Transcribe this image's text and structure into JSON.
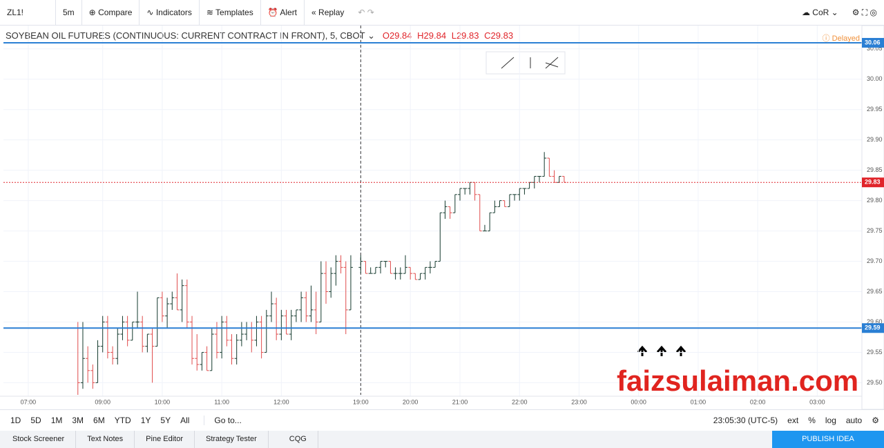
{
  "toolbar": {
    "symbol": "ZL1!",
    "interval": "5m",
    "buttons": [
      "Compare",
      "Indicators",
      "Templates",
      "Alert",
      "Replay"
    ],
    "layout": "CoR"
  },
  "legend": {
    "symbol": "SOYBEAN OIL FUTURES (CONTINUOUS: CURRENT CONTRACT IN FRONT), 5, CBOT",
    "ohlc_labels": [
      "O",
      "H",
      "L",
      "C"
    ],
    "ohlc": [
      29.84,
      29.84,
      29.83,
      29.83
    ],
    "status": "Delayed"
  },
  "chart_data": {
    "type": "ohlc",
    "up_color": "#13382c",
    "down_color": "#e04b4b",
    "grid": true,
    "xlim": [
      -15,
      158
    ],
    "ylim": [
      29.48,
      30.085
    ],
    "xticks": [
      {
        "value": -10,
        "label": "07:00"
      },
      {
        "value": 5,
        "label": "09:00"
      },
      {
        "value": 17,
        "label": "10:00"
      },
      {
        "value": 29,
        "label": "11:00"
      },
      {
        "value": 41,
        "label": "12:00"
      },
      {
        "value": 57,
        "label": "19:00"
      },
      {
        "value": 67,
        "label": "20:00"
      },
      {
        "value": 77,
        "label": "21:00"
      },
      {
        "value": 89,
        "label": "22:00"
      },
      {
        "value": 101,
        "label": "23:00"
      },
      {
        "value": 113,
        "label": "00:00"
      },
      {
        "value": 125,
        "label": "01:00"
      },
      {
        "value": 137,
        "label": "02:00"
      },
      {
        "value": 149,
        "label": "03:00"
      }
    ],
    "yticks": [
      30.05,
      {
        "value": 30,
        "label": "30.00"
      },
      29.95,
      {
        "value": 29.9,
        "label": "29.90"
      },
      29.85,
      {
        "value": 29.8,
        "label": "29.80"
      },
      29.75,
      {
        "value": 29.7,
        "label": "29.70"
      },
      29.65,
      {
        "value": 29.6,
        "label": "29.60"
      },
      29.55,
      {
        "value": 29.5,
        "label": "29.50"
      }
    ],
    "hlines": [
      {
        "value": 30.06,
        "color": "#2a7fd4"
      },
      {
        "value": 29.59,
        "color": "#2a7fd4"
      },
      {
        "value": 29.83,
        "color": "#e0242a"
      }
    ],
    "crosshair_x": 57,
    "x": [
      0,
      1,
      2,
      3,
      4,
      5,
      6,
      7,
      8,
      9,
      10,
      11,
      12,
      13,
      14,
      15,
      16,
      17,
      18,
      19,
      20,
      21,
      22,
      23,
      24,
      25,
      26,
      27,
      28,
      29,
      30,
      31,
      32,
      33,
      34,
      35,
      36,
      37,
      38,
      39,
      40,
      41,
      42,
      43,
      44,
      45,
      46,
      47,
      48,
      49,
      50,
      51,
      52,
      53,
      54,
      55,
      57,
      58,
      59,
      60,
      61,
      62,
      63,
      64,
      65,
      66,
      67,
      68,
      69,
      70,
      71,
      72,
      73,
      74,
      75,
      76,
      77,
      78,
      79,
      80,
      81,
      82,
      83,
      84,
      85,
      86,
      87,
      88,
      89,
      90,
      91,
      92,
      93,
      94,
      95,
      96,
      97,
      98
    ],
    "ohlc": [
      [
        29.59,
        29.6,
        29.48,
        29.5
      ],
      [
        29.5,
        29.6,
        29.49,
        29.54
      ],
      [
        29.54,
        29.56,
        29.5,
        29.52
      ],
      [
        29.52,
        29.53,
        29.49,
        29.5
      ],
      [
        29.5,
        29.57,
        29.5,
        29.56
      ],
      [
        29.56,
        29.61,
        29.55,
        29.6
      ],
      [
        29.6,
        29.61,
        29.54,
        29.55
      ],
      [
        29.55,
        29.56,
        29.53,
        29.54
      ],
      [
        29.54,
        29.59,
        29.53,
        29.58
      ],
      [
        29.58,
        29.61,
        29.57,
        29.6
      ],
      [
        29.6,
        29.61,
        29.56,
        29.57
      ],
      [
        29.57,
        29.6,
        29.57,
        29.6
      ],
      [
        29.6,
        29.65,
        29.59,
        29.6
      ],
      [
        29.6,
        29.61,
        29.55,
        29.56
      ],
      [
        29.56,
        29.58,
        29.55,
        29.58
      ],
      [
        29.58,
        29.59,
        29.5,
        29.56
      ],
      [
        29.56,
        29.64,
        29.56,
        29.64
      ],
      [
        29.64,
        29.65,
        29.6,
        29.61
      ],
      [
        29.61,
        29.64,
        29.59,
        29.63
      ],
      [
        29.63,
        29.65,
        29.62,
        29.64
      ],
      [
        29.64,
        29.68,
        29.62,
        29.62
      ],
      [
        29.62,
        29.67,
        29.6,
        29.66
      ],
      [
        29.66,
        29.67,
        29.59,
        29.6
      ],
      [
        29.6,
        29.61,
        29.53,
        29.54
      ],
      [
        29.54,
        29.58,
        29.52,
        29.53
      ],
      [
        29.53,
        29.55,
        29.52,
        29.55
      ],
      [
        29.55,
        29.56,
        29.52,
        29.52
      ],
      [
        29.52,
        29.59,
        29.52,
        29.58
      ],
      [
        29.58,
        29.6,
        29.54,
        29.55
      ],
      [
        29.55,
        29.61,
        29.54,
        29.6
      ],
      [
        29.6,
        29.61,
        29.56,
        29.57
      ],
      [
        29.57,
        29.58,
        29.53,
        29.54
      ],
      [
        29.54,
        29.58,
        29.53,
        29.57
      ],
      [
        29.57,
        29.6,
        29.56,
        29.58
      ],
      [
        29.58,
        29.6,
        29.57,
        29.59
      ],
      [
        29.59,
        29.6,
        29.55,
        29.57
      ],
      [
        29.57,
        29.61,
        29.56,
        29.6
      ],
      [
        29.6,
        29.61,
        29.54,
        29.55
      ],
      [
        29.55,
        29.62,
        29.55,
        29.61
      ],
      [
        29.61,
        29.65,
        29.6,
        29.63
      ],
      [
        29.63,
        29.64,
        29.57,
        29.58
      ],
      [
        29.58,
        29.62,
        29.57,
        29.61
      ],
      [
        29.61,
        29.62,
        29.58,
        29.58
      ],
      [
        29.58,
        29.62,
        29.57,
        29.61
      ],
      [
        29.61,
        29.62,
        29.6,
        29.62
      ],
      [
        29.62,
        29.65,
        29.6,
        29.64
      ],
      [
        29.64,
        29.65,
        29.6,
        29.61
      ],
      [
        29.61,
        29.66,
        29.6,
        29.62
      ],
      [
        29.62,
        29.65,
        29.58,
        29.6
      ],
      [
        29.6,
        29.7,
        29.6,
        29.68
      ],
      [
        29.68,
        29.7,
        29.63,
        29.65
      ],
      [
        29.65,
        29.69,
        29.64,
        29.68
      ],
      [
        29.68,
        29.71,
        29.66,
        29.7
      ],
      [
        29.7,
        29.71,
        29.68,
        29.69
      ],
      [
        29.69,
        29.7,
        29.58,
        29.62
      ],
      [
        29.62,
        29.71,
        29.62,
        29.69
      ],
      [
        29.69,
        29.71,
        29.68,
        29.7
      ],
      [
        29.7,
        29.7,
        29.68,
        29.68
      ],
      [
        29.68,
        29.69,
        29.68,
        29.68
      ],
      [
        29.68,
        29.69,
        29.68,
        29.69
      ],
      [
        29.69,
        29.7,
        29.68,
        29.7
      ],
      [
        29.7,
        29.7,
        29.69,
        29.7
      ],
      [
        29.7,
        29.7,
        29.68,
        29.68
      ],
      [
        29.68,
        29.69,
        29.67,
        29.68
      ],
      [
        29.68,
        29.69,
        29.67,
        29.68
      ],
      [
        29.68,
        29.71,
        29.68,
        29.69
      ],
      [
        29.69,
        29.69,
        29.67,
        29.68
      ],
      [
        29.68,
        29.68,
        29.67,
        29.67
      ],
      [
        29.67,
        29.68,
        29.67,
        29.68
      ],
      [
        29.68,
        29.69,
        29.67,
        29.69
      ],
      [
        29.69,
        29.7,
        29.68,
        29.69
      ],
      [
        29.69,
        29.7,
        29.69,
        29.7
      ],
      [
        29.7,
        29.78,
        29.7,
        29.78
      ],
      [
        29.78,
        29.8,
        29.77,
        29.79
      ],
      [
        29.79,
        29.79,
        29.77,
        29.78
      ],
      [
        29.78,
        29.81,
        29.78,
        29.81
      ],
      [
        29.81,
        29.82,
        29.8,
        29.82
      ],
      [
        29.82,
        29.82,
        29.81,
        29.82
      ],
      [
        29.82,
        29.83,
        29.81,
        29.83
      ],
      [
        29.83,
        29.83,
        29.8,
        29.81
      ],
      [
        29.81,
        29.81,
        29.75,
        29.75
      ],
      [
        29.75,
        29.76,
        29.75,
        29.75
      ],
      [
        29.75,
        29.78,
        29.75,
        29.78
      ],
      [
        29.78,
        29.8,
        29.78,
        29.79
      ],
      [
        29.79,
        29.8,
        29.79,
        29.8
      ],
      [
        29.8,
        29.8,
        29.79,
        29.79
      ],
      [
        29.79,
        29.81,
        29.79,
        29.81
      ],
      [
        29.81,
        29.81,
        29.8,
        29.81
      ],
      [
        29.81,
        29.82,
        29.8,
        29.82
      ],
      [
        29.82,
        29.82,
        29.81,
        29.82
      ],
      [
        29.82,
        29.83,
        29.82,
        29.83
      ],
      [
        29.83,
        29.84,
        29.82,
        29.84
      ],
      [
        29.84,
        29.84,
        29.83,
        29.84
      ],
      [
        29.84,
        29.88,
        29.84,
        29.87
      ],
      [
        29.87,
        29.87,
        29.84,
        29.84
      ],
      [
        29.84,
        29.85,
        29.83,
        29.83
      ],
      [
        29.83,
        29.84,
        29.83,
        29.84
      ],
      [
        29.84,
        29.84,
        29.83,
        29.83
      ]
    ],
    "watermark": "faizsulaiman.com"
  },
  "range_bar": {
    "ranges": [
      "1D",
      "5D",
      "1M",
      "3M",
      "6M",
      "YTD",
      "1Y",
      "5Y",
      "All"
    ],
    "goto": "Go to...",
    "clock": "23:05:30 (UTC-5)",
    "options": [
      "ext",
      "%",
      "log",
      "auto"
    ]
  },
  "bottom_tabs": [
    "Stock Screener",
    "Text Notes",
    "Pine Editor",
    "Strategy Tester",
    "CQG"
  ],
  "publish": "PUBLISH IDEA"
}
